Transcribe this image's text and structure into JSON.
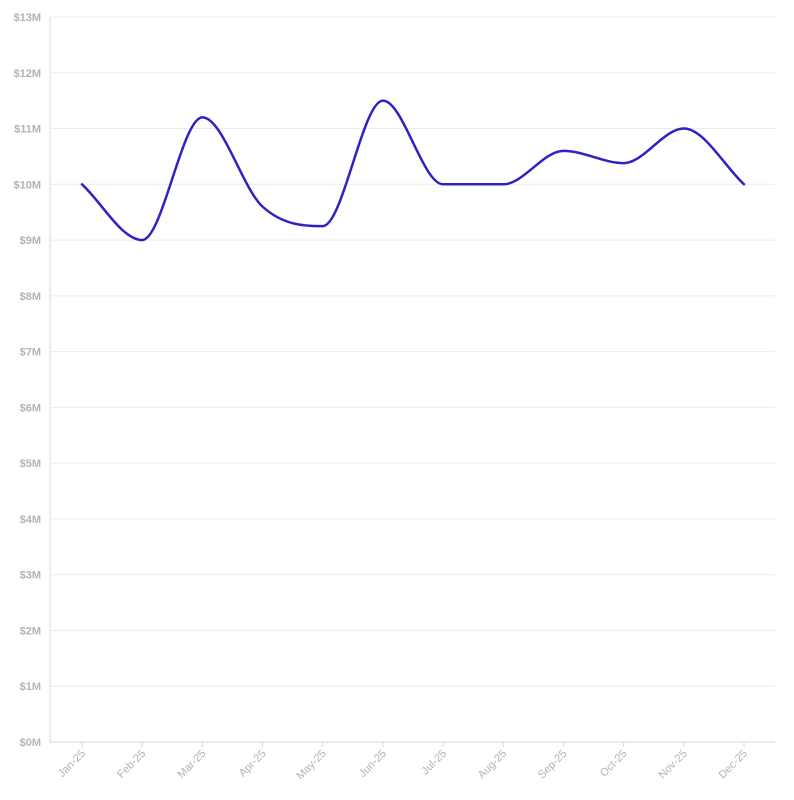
{
  "chart_data": {
    "type": "line",
    "title": "",
    "xlabel": "",
    "ylabel": "",
    "categories": [
      "Jan-25",
      "Feb-25",
      "Mar-25",
      "Apr-25",
      "May-25",
      "Jun-25",
      "Jul-25",
      "Aug-25",
      "Sep-25",
      "Oct-25",
      "Nov-25",
      "Dec-25"
    ],
    "series": [
      {
        "values": [
          10.0,
          9.0,
          11.2,
          9.6,
          9.25,
          11.5,
          10.0,
          10.0,
          10.6,
          10.38,
          11.0,
          10.0
        ],
        "color": "#2e22c4"
      }
    ],
    "ylim": [
      0,
      13
    ],
    "yticks": [
      0,
      1,
      2,
      3,
      4,
      5,
      6,
      7,
      8,
      9,
      10,
      11,
      12,
      13
    ],
    "ytick_labels": [
      "$0M",
      "$1M",
      "$2M",
      "$3M",
      "$4M",
      "$5M",
      "$6M",
      "$7M",
      "$8M",
      "$9M",
      "$10M",
      "$11M",
      "$12M",
      "$13M"
    ],
    "grid": true,
    "legend": "none",
    "colors": {
      "line": "#2e22c4",
      "grid": "#ebebeb",
      "axis": "#d9d9d9",
      "tick_text": "#b3b3b3"
    }
  }
}
